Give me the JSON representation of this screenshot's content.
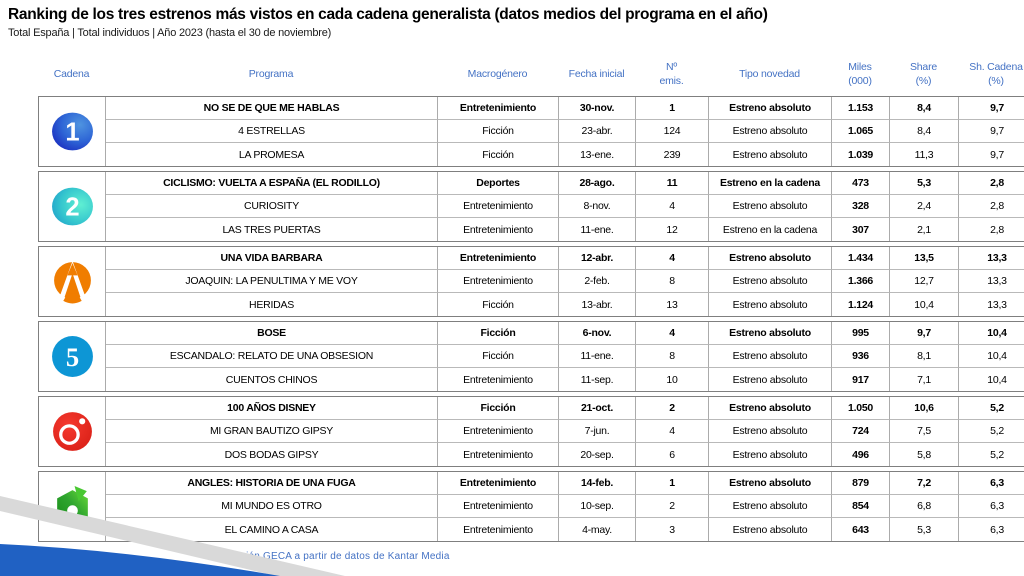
{
  "title": "Ranking de los tres estrenos más vistos en cada cadena generalista (datos medios del programa en el año)",
  "subtitle": "Total España | Total individuos | Año 2023 (hasta el 30 de noviembre)",
  "footer": "Elaboración  GECA  a partir de datos de Kantar Media",
  "colors": {
    "header_text": "#4472C4",
    "corner_blue": "#2061C3",
    "corner_gray": "#D9D9D9",
    "la1_blue": "#1C3FC8",
    "la2_teal": "#2BAED4",
    "antena3_orange": "#F07D00",
    "telecinco_blue": "#0D96D5",
    "cuatro_red": "#E52620",
    "lasexta_green": "#2FA52F"
  },
  "table": {
    "headers": [
      {
        "line1": "Cadena",
        "line2": ""
      },
      {
        "line1": "Programa",
        "line2": ""
      },
      {
        "line1": "Macrogénero",
        "line2": ""
      },
      {
        "line1": "Fecha inicial",
        "line2": ""
      },
      {
        "line1": "Nº",
        "line2": "emis."
      },
      {
        "line1": "Tipo novedad",
        "line2": ""
      },
      {
        "line1": "Miles",
        "line2": "(000)"
      },
      {
        "line1": "Share",
        "line2": "(%)"
      },
      {
        "line1": "Sh. Cadena",
        "line2": "(%)"
      }
    ],
    "channels": [
      {
        "name": "La 1",
        "logo": "la1",
        "rows": [
          {
            "programa": "NO SE DE QUE ME HABLAS",
            "macrogenero": "Entretenimiento",
            "fecha": "30-nov.",
            "emisiones": "1",
            "tipo": "Estreno absoluto",
            "miles": "1.153",
            "share": "8,4",
            "share_cadena": "9,7"
          },
          {
            "programa": "4 ESTRELLAS",
            "macrogenero": "Ficción",
            "fecha": "23-abr.",
            "emisiones": "124",
            "tipo": "Estreno absoluto",
            "miles": "1.065",
            "share": "8,4",
            "share_cadena": "9,7"
          },
          {
            "programa": "LA PROMESA",
            "macrogenero": "Ficción",
            "fecha": "13-ene.",
            "emisiones": "239",
            "tipo": "Estreno absoluto",
            "miles": "1.039",
            "share": "11,3",
            "share_cadena": "9,7"
          }
        ]
      },
      {
        "name": "La 2",
        "logo": "la2",
        "rows": [
          {
            "programa": "CICLISMO: VUELTA A ESPAÑA (EL RODILLO)",
            "macrogenero": "Deportes",
            "fecha": "28-ago.",
            "emisiones": "11",
            "tipo": "Estreno en la cadena",
            "miles": "473",
            "share": "5,3",
            "share_cadena": "2,8"
          },
          {
            "programa": "CURIOSITY",
            "macrogenero": "Entretenimiento",
            "fecha": "8-nov.",
            "emisiones": "4",
            "tipo": "Estreno absoluto",
            "miles": "328",
            "share": "2,4",
            "share_cadena": "2,8"
          },
          {
            "programa": "LAS TRES PUERTAS",
            "macrogenero": "Entretenimiento",
            "fecha": "11-ene.",
            "emisiones": "12",
            "tipo": "Estreno en la cadena",
            "miles": "307",
            "share": "2,1",
            "share_cadena": "2,8"
          }
        ]
      },
      {
        "name": "Antena 3",
        "logo": "antena3",
        "rows": [
          {
            "programa": "UNA VIDA BARBARA",
            "macrogenero": "Entretenimiento",
            "fecha": "12-abr.",
            "emisiones": "4",
            "tipo": "Estreno absoluto",
            "miles": "1.434",
            "share": "13,5",
            "share_cadena": "13,3"
          },
          {
            "programa": "JOAQUIN: LA PENULTIMA Y ME VOY",
            "macrogenero": "Entretenimiento",
            "fecha": "2-feb.",
            "emisiones": "8",
            "tipo": "Estreno absoluto",
            "miles": "1.366",
            "share": "12,7",
            "share_cadena": "13,3"
          },
          {
            "programa": "HERIDAS",
            "macrogenero": "Ficción",
            "fecha": "13-abr.",
            "emisiones": "13",
            "tipo": "Estreno absoluto",
            "miles": "1.124",
            "share": "10,4",
            "share_cadena": "13,3"
          }
        ]
      },
      {
        "name": "Telecinco",
        "logo": "telecinco",
        "rows": [
          {
            "programa": "BOSE",
            "macrogenero": "Ficción",
            "fecha": "6-nov.",
            "emisiones": "4",
            "tipo": "Estreno absoluto",
            "miles": "995",
            "share": "9,7",
            "share_cadena": "10,4"
          },
          {
            "programa": "ESCANDALO: RELATO DE UNA OBSESION",
            "macrogenero": "Ficción",
            "fecha": "11-ene.",
            "emisiones": "8",
            "tipo": "Estreno absoluto",
            "miles": "936",
            "share": "8,1",
            "share_cadena": "10,4"
          },
          {
            "programa": "CUENTOS CHINOS",
            "macrogenero": "Entretenimiento",
            "fecha": "11-sep.",
            "emisiones": "10",
            "tipo": "Estreno absoluto",
            "miles": "917",
            "share": "7,1",
            "share_cadena": "10,4"
          }
        ]
      },
      {
        "name": "Cuatro",
        "logo": "cuatro",
        "rows": [
          {
            "programa": "100 AÑOS DISNEY",
            "macrogenero": "Ficción",
            "fecha": "21-oct.",
            "emisiones": "2",
            "tipo": "Estreno absoluto",
            "miles": "1.050",
            "share": "10,6",
            "share_cadena": "5,2"
          },
          {
            "programa": "MI GRAN BAUTIZO GIPSY",
            "macrogenero": "Entretenimiento",
            "fecha": "7-jun.",
            "emisiones": "4",
            "tipo": "Estreno absoluto",
            "miles": "724",
            "share": "7,5",
            "share_cadena": "5,2"
          },
          {
            "programa": "DOS BODAS GIPSY",
            "macrogenero": "Entretenimiento",
            "fecha": "20-sep.",
            "emisiones": "6",
            "tipo": "Estreno absoluto",
            "miles": "496",
            "share": "5,8",
            "share_cadena": "5,2"
          }
        ]
      },
      {
        "name": "laSexta",
        "logo": "lasexta",
        "rows": [
          {
            "programa": "ANGLES: HISTORIA DE UNA FUGA",
            "macrogenero": "Entretenimiento",
            "fecha": "14-feb.",
            "emisiones": "1",
            "tipo": "Estreno absoluto",
            "miles": "879",
            "share": "7,2",
            "share_cadena": "6,3"
          },
          {
            "programa": "MI MUNDO ES OTRO",
            "macrogenero": "Entretenimiento",
            "fecha": "10-sep.",
            "emisiones": "2",
            "tipo": "Estreno absoluto",
            "miles": "854",
            "share": "6,8",
            "share_cadena": "6,3"
          },
          {
            "programa": "EL CAMINO A CASA",
            "macrogenero": "Entretenimiento",
            "fecha": "4-may.",
            "emisiones": "3",
            "tipo": "Estreno absoluto",
            "miles": "643",
            "share": "5,3",
            "share_cadena": "6,3"
          }
        ]
      }
    ]
  }
}
